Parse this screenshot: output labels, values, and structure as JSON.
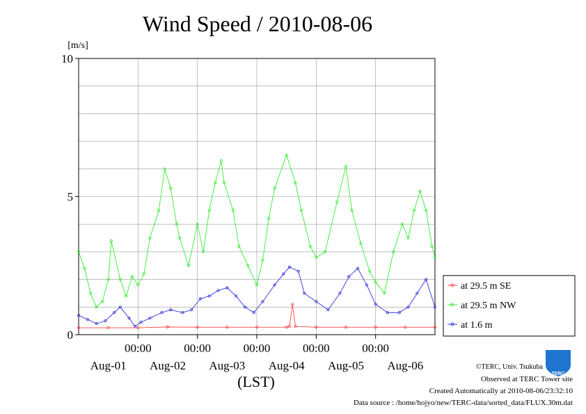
{
  "colors": {
    "se": "#ff4444",
    "nw": "#33ee33",
    "low": "#3333dd",
    "grid": "#999999",
    "logo": "#1f74d0"
  },
  "logo": {
    "text": "TERC"
  },
  "credits": {
    "copyright": "©TERC, Univ. Tsukuba",
    "observed": "Observed at TERC Tower site",
    "created": "Created Automatically at 2010-08-06/23:32:10",
    "source": "Data source : /home/hojyo/new/TERC-data/sorted_data/FLUX.30m.dat"
  },
  "chart_data": {
    "type": "line",
    "title": "Wind Speed / 2010-08-06",
    "ylabel": "[m/s]",
    "xlabel": "(LST)",
    "ylim": [
      0,
      10
    ],
    "yticks": [
      "0",
      "5",
      "10"
    ],
    "xlim": [
      0,
      6
    ],
    "time_ticks": [
      "00:00",
      "00:00",
      "00:00",
      "00:00",
      "00:00"
    ],
    "day_labels": [
      "Aug-01",
      "Aug-02",
      "Aug-03",
      "Aug-04",
      "Aug-05",
      "Aug-06"
    ],
    "x_unit": "days since 2010-08-01 00:00 LST",
    "grid": true,
    "legend_position": "right",
    "series": [
      {
        "name": "at 29.5 m SE",
        "color_key": "se",
        "x": [
          0,
          0.5,
          1,
          1.5,
          2,
          2.5,
          3,
          3.5,
          3.55,
          3.6,
          3.65,
          4,
          4.5,
          5,
          5.5,
          6
        ],
        "y": [
          0.25,
          0.25,
          0.25,
          0.28,
          0.27,
          0.27,
          0.27,
          0.27,
          0.3,
          1.1,
          0.3,
          0.27,
          0.27,
          0.27,
          0.27,
          0.27
        ]
      },
      {
        "name": "at 29.5 m NW",
        "color_key": "nw",
        "x": [
          0,
          0.1,
          0.2,
          0.3,
          0.4,
          0.5,
          0.55,
          0.7,
          0.8,
          0.9,
          1.0,
          1.1,
          1.2,
          1.35,
          1.45,
          1.55,
          1.65,
          1.7,
          1.85,
          2.0,
          2.1,
          2.2,
          2.3,
          2.4,
          2.45,
          2.6,
          2.7,
          2.85,
          3.0,
          3.1,
          3.2,
          3.3,
          3.5,
          3.65,
          3.75,
          3.9,
          4.0,
          4.15,
          4.35,
          4.5,
          4.6,
          4.75,
          4.9,
          5.0,
          5.15,
          5.3,
          5.45,
          5.55,
          5.65,
          5.75,
          5.85,
          5.95,
          6.0
        ],
        "y": [
          3.0,
          2.4,
          1.5,
          1.0,
          1.2,
          2.0,
          3.4,
          2.0,
          1.4,
          2.1,
          1.8,
          2.2,
          3.5,
          4.5,
          6.0,
          5.3,
          4.0,
          3.5,
          2.5,
          4.0,
          3.0,
          4.5,
          5.5,
          6.3,
          5.5,
          4.5,
          3.2,
          2.5,
          1.8,
          2.7,
          4.2,
          5.3,
          6.5,
          5.5,
          4.5,
          3.2,
          2.8,
          3.0,
          4.8,
          6.1,
          4.5,
          3.3,
          2.3,
          1.9,
          1.5,
          3.0,
          4.0,
          3.5,
          4.5,
          5.2,
          4.5,
          3.2,
          2.8
        ]
      },
      {
        "name": "at 1.6 m",
        "color_key": "low",
        "x": [
          0,
          0.15,
          0.3,
          0.45,
          0.6,
          0.7,
          0.85,
          0.95,
          1.05,
          1.2,
          1.4,
          1.55,
          1.75,
          1.9,
          2.05,
          2.2,
          2.35,
          2.5,
          2.65,
          2.8,
          2.95,
          3.1,
          3.3,
          3.45,
          3.55,
          3.7,
          3.8,
          4.0,
          4.2,
          4.4,
          4.55,
          4.7,
          4.85,
          5.0,
          5.2,
          5.4,
          5.55,
          5.7,
          5.85,
          6.0
        ],
        "y": [
          0.7,
          0.55,
          0.4,
          0.5,
          0.8,
          1.0,
          0.6,
          0.3,
          0.45,
          0.6,
          0.8,
          0.9,
          0.8,
          0.9,
          1.3,
          1.4,
          1.6,
          1.7,
          1.4,
          1.0,
          0.8,
          1.2,
          1.8,
          2.2,
          2.45,
          2.3,
          1.5,
          1.2,
          0.9,
          1.5,
          2.1,
          2.4,
          1.8,
          1.1,
          0.8,
          0.8,
          1.0,
          1.5,
          2.0,
          1.0
        ]
      }
    ]
  }
}
